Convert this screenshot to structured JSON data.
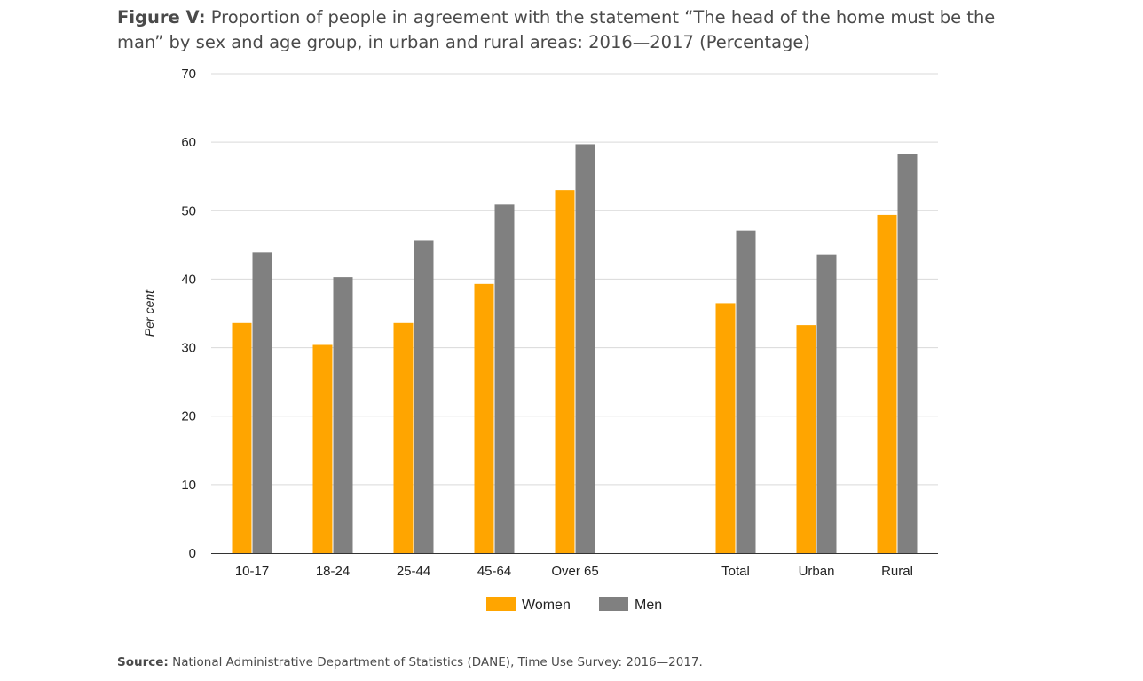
{
  "figure": {
    "title_lead": "Figure V:",
    "title_text": " Proportion of people in agreement with the statement “The head of the home must be the man” by sex and age group, in urban and rural areas: 2016—2017 (Percentage)"
  },
  "source": {
    "lead": "Source:",
    "text": " National Administrative Department of Statistics (DANE), Time Use Survey: 2016—2017."
  },
  "chart_data": {
    "type": "bar",
    "title": "Figure V: Proportion of people in agreement with the statement “The head of the home must be the man” by sex and age group, in urban and rural areas: 2016—2017 (Percentage)",
    "xlabel": "",
    "ylabel": "Per cent",
    "ylim": [
      0,
      70
    ],
    "yticks": [
      0,
      10,
      20,
      30,
      40,
      50,
      60,
      70
    ],
    "grid": true,
    "legend_position": "bottom-center",
    "categories": [
      "10-17",
      "18-24",
      "25-44",
      "45-64",
      "Over 65",
      "Total",
      "Urban",
      "Rural"
    ],
    "series": [
      {
        "name": "Women",
        "color": "#FFA500",
        "values": [
          33.6,
          30.4,
          33.6,
          39.3,
          53.0,
          36.5,
          33.3,
          49.4
        ]
      },
      {
        "name": "Men",
        "color": "#808080",
        "values": [
          43.9,
          40.3,
          45.7,
          50.9,
          59.7,
          47.1,
          43.6,
          58.3
        ]
      }
    ]
  }
}
